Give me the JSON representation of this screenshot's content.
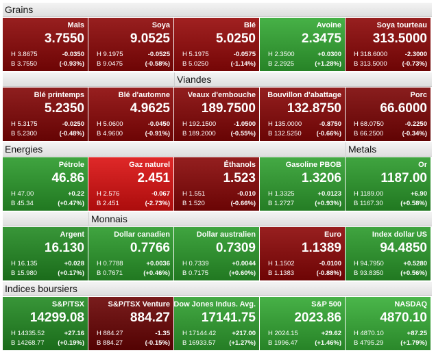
{
  "rows": [
    {
      "sections": [
        {
          "title": "Grains",
          "tiles": [
            {
              "name": "Maïs",
              "value": "3.7550",
              "high": "H 3.8675",
              "change": "-0.0350",
              "low": "B 3.7550",
              "percent": "(-0.93%)",
              "color": "#8c0606"
            },
            {
              "name": "Soya",
              "value": "9.0525",
              "high": "H 9.1975",
              "change": "-0.0525",
              "low": "B 9.0475",
              "percent": "(-0.58%)",
              "color": "#8c0606"
            },
            {
              "name": "Blé",
              "value": "5.0250",
              "high": "H 5.1975",
              "change": "-0.0575",
              "low": "B 5.0250",
              "percent": "(-1.14%)",
              "color": "#960808"
            },
            {
              "name": "Avoine",
              "value": "2.3475",
              "high": "H 2.3500",
              "change": "+0.0300",
              "low": "B 2.2925",
              "percent": "(+1.28%)",
              "color": "#32a832"
            },
            {
              "name": "Soya tourteau",
              "value": "313.5000",
              "high": "H 318.6000",
              "change": "-2.3000",
              "low": "B 313.5000",
              "percent": "(-0.73%)",
              "color": "#8c0606"
            }
          ]
        }
      ]
    },
    {
      "sections": [
        {
          "title": "Viandes",
          "tiles": [
            {
              "name": "Blé printemps",
              "value": "5.2350",
              "high": "H 5.3175",
              "change": "-0.0250",
              "low": "B 5.2300",
              "percent": "(-0.48%)",
              "color": "#820505"
            },
            {
              "name": "Blé d'automne",
              "value": "4.9625",
              "high": "H 5.0600",
              "change": "-0.0450",
              "low": "B 4.9600",
              "percent": "(-0.91%)",
              "color": "#8c0606"
            },
            {
              "name": "Veaux d'embouche",
              "value": "189.7500",
              "high": "H 192.1500",
              "change": "-1.0500",
              "low": "B 189.2000",
              "percent": "(-0.55%)",
              "color": "#850505"
            },
            {
              "name": "Bouvillon d'abattage",
              "value": "132.8750",
              "high": "H 135.0000",
              "change": "-0.8750",
              "low": "B 132.5250",
              "percent": "(-0.66%)",
              "color": "#880606"
            },
            {
              "name": "Porc",
              "value": "66.6000",
              "high": "H 68.0750",
              "change": "-0.2250",
              "low": "B 66.2500",
              "percent": "(-0.34%)",
              "color": "#7c0404"
            }
          ]
        }
      ]
    },
    {
      "sections": [
        {
          "title": "Energies",
          "tiles": [
            {
              "name": "Pétrole",
              "value": "46.86",
              "high": "H 47.00",
              "change": "+0.22",
              "low": "B 45.34",
              "percent": "(+0.47%)",
              "color": "#2a9a2a"
            },
            {
              "name": "Gaz naturel",
              "value": "2.451",
              "high": "H 2.576",
              "change": "-0.067",
              "low": "B 2.451",
              "percent": "(-2.73%)",
              "color": "#dc1010"
            },
            {
              "name": "Éthanols",
              "value": "1.523",
              "high": "H 1.551",
              "change": "-0.010",
              "low": "B 1.520",
              "percent": "(-0.66%)",
              "color": "#880606"
            },
            {
              "name": "Gasoline PBOB",
              "value": "1.3206",
              "high": "H 1.3325",
              "change": "+0.0123",
              "low": "B 1.2727",
              "percent": "(+0.93%)",
              "color": "#2fa02f"
            }
          ]
        },
        {
          "title": "Metals",
          "tiles": [
            {
              "name": "Or",
              "value": "1187.00",
              "high": "H 1189.00",
              "change": "+6.90",
              "low": "B 1167.30",
              "percent": "(+0.58%)",
              "color": "#2a9a2a"
            }
          ]
        }
      ]
    },
    {
      "sections": [
        {
          "title": "Monnais",
          "tiles": [
            {
              "name": "Argent",
              "value": "16.130",
              "high": "H 16.135",
              "change": "+0.028",
              "low": "B 15.980",
              "percent": "(+0.17%)",
              "color": "#228a22"
            },
            {
              "name": "Dollar canadien",
              "value": "0.7766",
              "high": "H 0.7788",
              "change": "+0.0036",
              "low": "B 0.7671",
              "percent": "(+0.46%)",
              "color": "#2a9a2a"
            },
            {
              "name": "Dollar australien",
              "value": "0.7309",
              "high": "H 0.7339",
              "change": "+0.0044",
              "low": "B 0.7175",
              "percent": "(+0.60%)",
              "color": "#2a9a2a"
            },
            {
              "name": "Euro",
              "value": "1.1389",
              "high": "H 1.1502",
              "change": "-0.0100",
              "low": "B 1.1383",
              "percent": "(-0.88%)",
              "color": "#8c0606"
            },
            {
              "name": "Index dollar US",
              "value": "94.4850",
              "high": "H 94.7950",
              "change": "+0.5280",
              "low": "B 93.8350",
              "percent": "(+0.56%)",
              "color": "#2a9a2a"
            }
          ]
        }
      ]
    },
    {
      "sections": [
        {
          "title": "Indices boursiers",
          "tiles": [
            {
              "name": "S&P/TSX",
              "value": "14299.08",
              "high": "H 14335.52",
              "change": "+27.16",
              "low": "B 14268.77",
              "percent": "(+0.19%)",
              "color": "#228a22"
            },
            {
              "name": "S&P/TSX Venture",
              "value": "884.27",
              "high": "H 884.27",
              "change": "-1.35",
              "low": "B 884.27",
              "percent": "(-0.15%)",
              "color": "#6a0303"
            },
            {
              "name": "Dow Jones Indus. Avg.",
              "value": "17141.75",
              "high": "H 17144.42",
              "change": "+217.00",
              "low": "B 16933.57",
              "percent": "(+1.27%)",
              "color": "#2fa02f"
            },
            {
              "name": "S&P 500",
              "value": "2023.86",
              "high": "H 2024.15",
              "change": "+29.62",
              "low": "B 1996.47",
              "percent": "(+1.46%)",
              "color": "#32a832"
            },
            {
              "name": "NASDAQ",
              "value": "4870.10",
              "high": "H 4870.10",
              "change": "+87.25",
              "low": "B 4795.29",
              "percent": "(+1.79%)",
              "color": "#36ae36"
            }
          ]
        }
      ]
    }
  ]
}
